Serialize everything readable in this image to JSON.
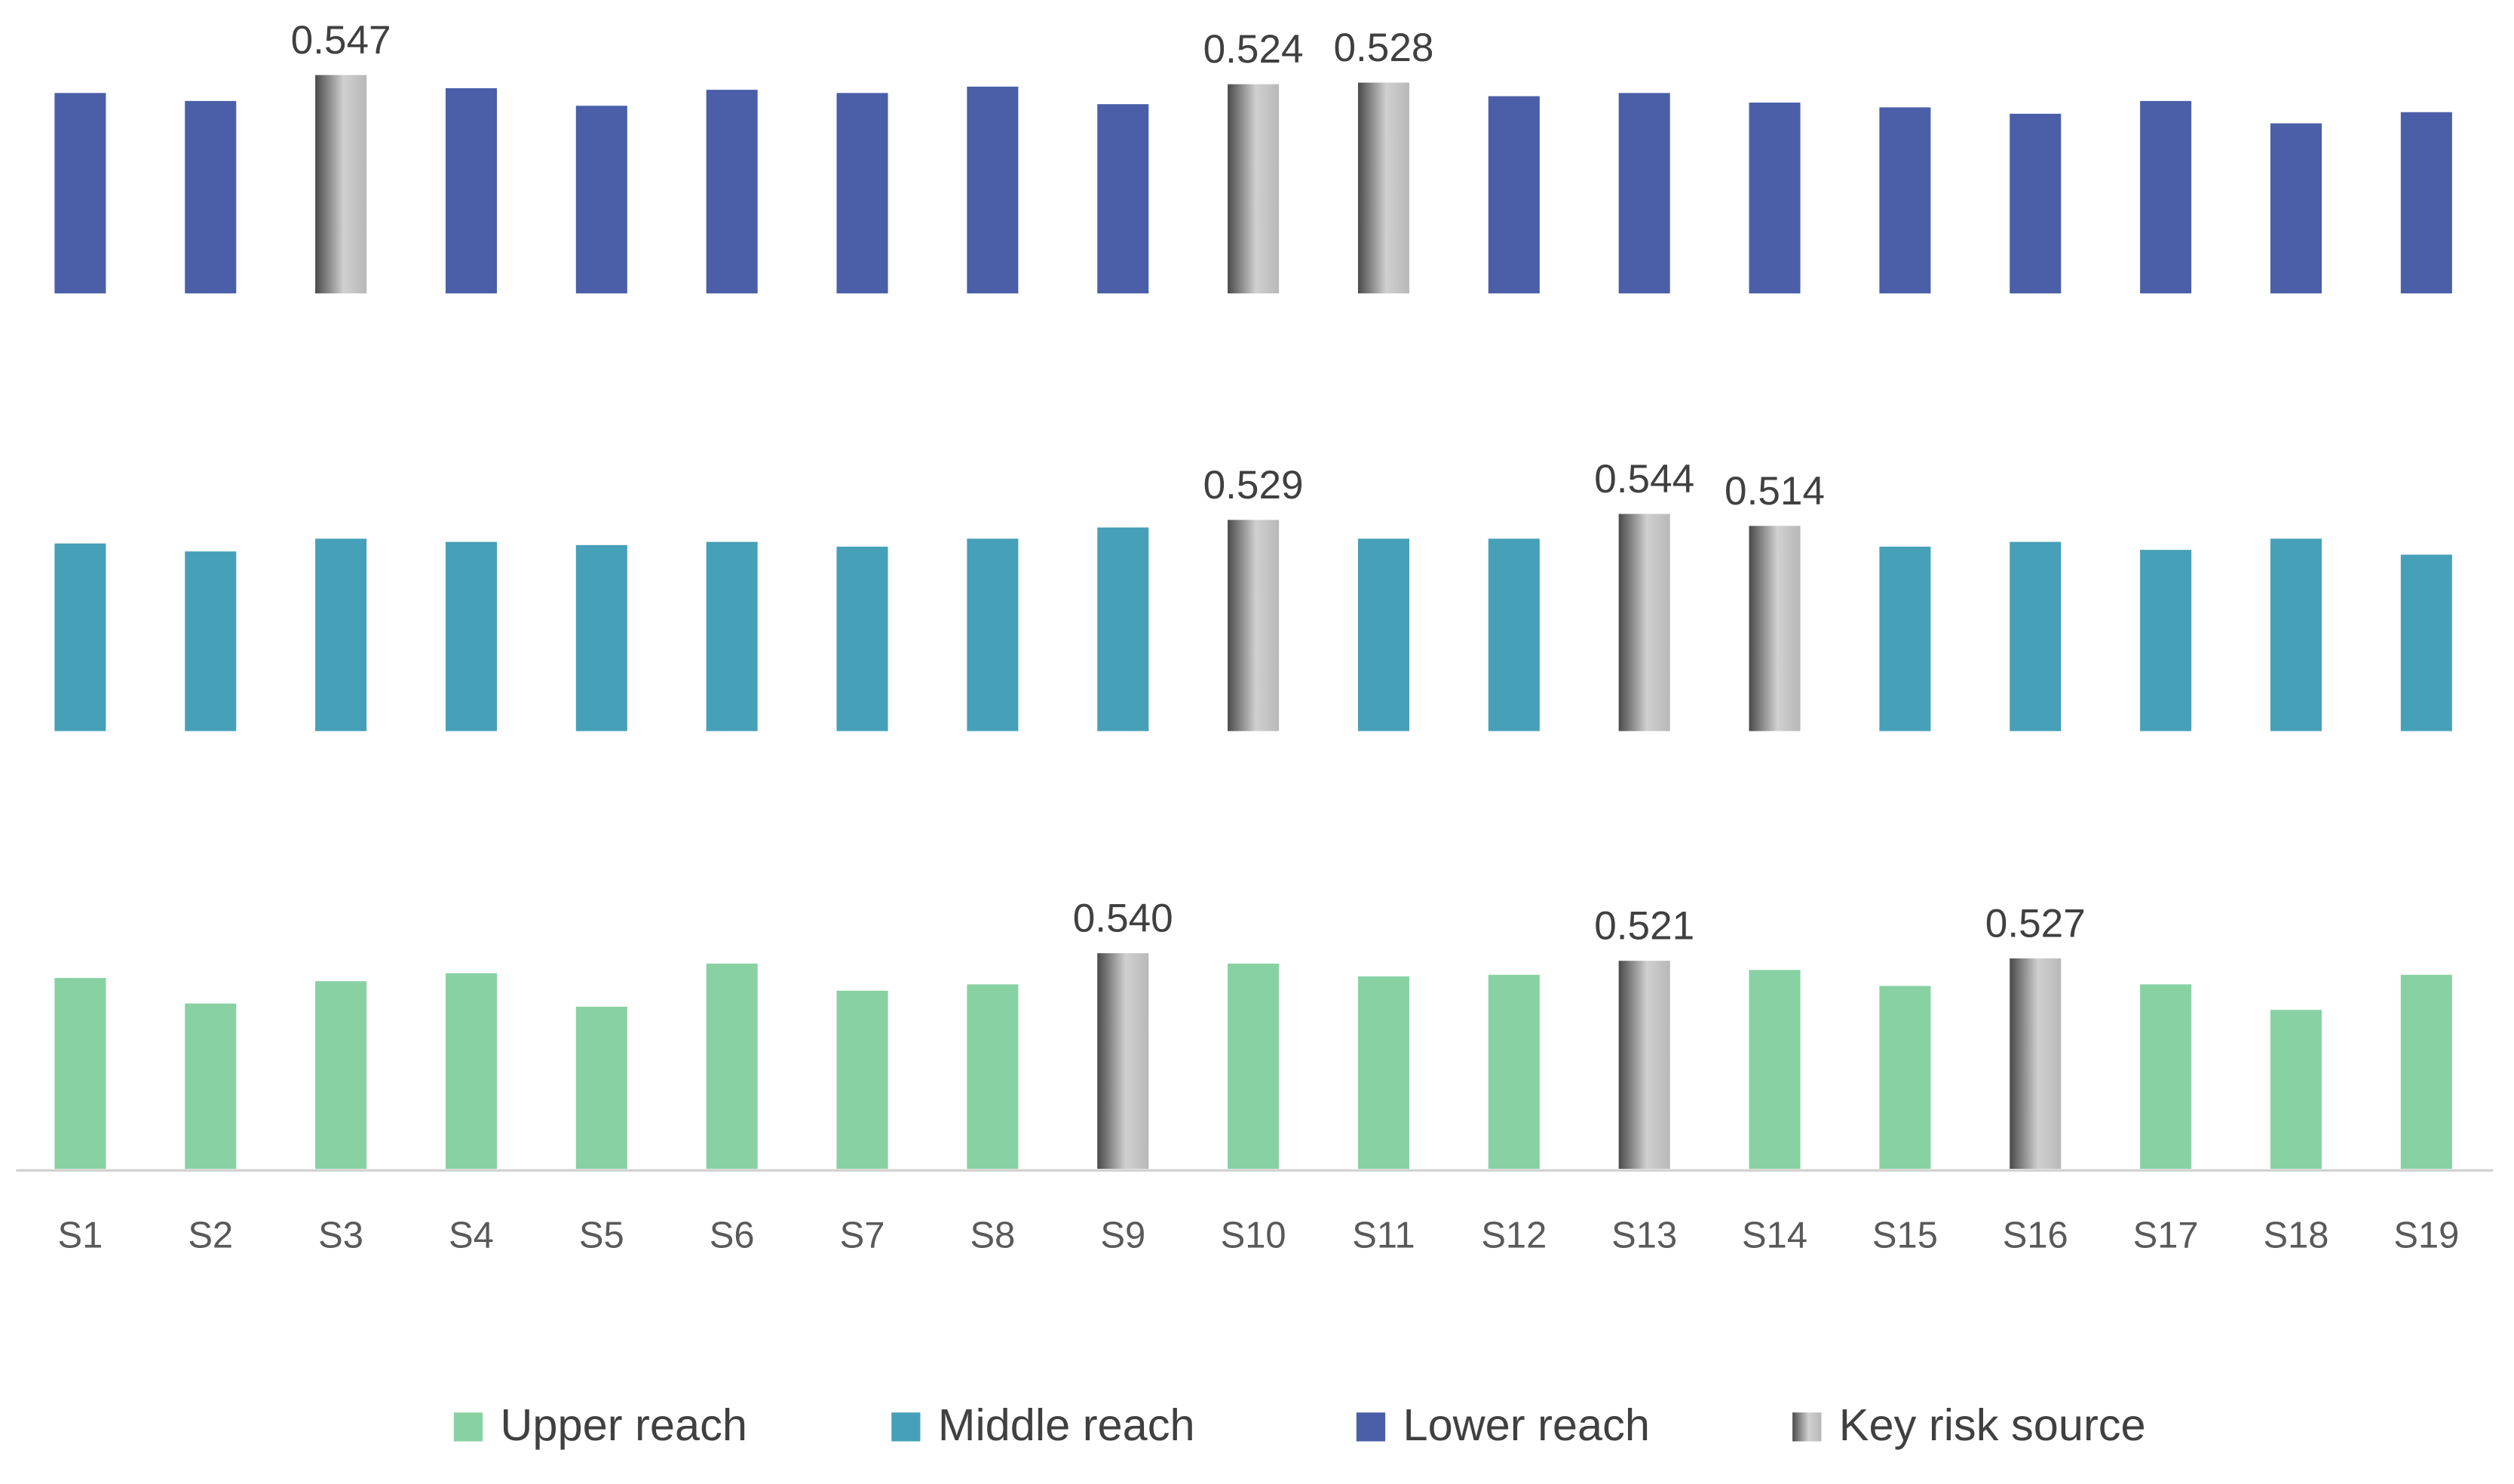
{
  "chart_data": {
    "type": "bar",
    "categories": [
      "S1",
      "S2",
      "S3",
      "S4",
      "S5",
      "S6",
      "S7",
      "S8",
      "S9",
      "S10",
      "S11",
      "S12",
      "S13",
      "S14",
      "S15",
      "S16",
      "S17",
      "S18",
      "S19"
    ],
    "series": [
      {
        "name": "Upper reach",
        "color": "#88d1a3",
        "values": [
          0.478,
          0.414,
          0.47,
          0.49,
          0.406,
          0.514,
          0.446,
          0.462,
          0.54,
          0.514,
          0.482,
          0.486,
          0.521,
          0.498,
          0.458,
          0.527,
          0.462,
          0.398,
          0.486
        ],
        "value_labels": [
          null,
          null,
          null,
          null,
          null,
          null,
          null,
          null,
          "0.540",
          null,
          null,
          null,
          "0.521",
          null,
          null,
          "0.527",
          null,
          null,
          null
        ]
      },
      {
        "name": "Middle reach",
        "color": "#46a0b8",
        "values": [
          0.47,
          0.45,
          0.482,
          0.474,
          0.466,
          0.474,
          0.462,
          0.482,
          0.51,
          0.529,
          0.482,
          0.482,
          0.544,
          0.514,
          0.462,
          0.474,
          0.454,
          0.482,
          0.442
        ],
        "value_labels": [
          null,
          null,
          null,
          null,
          null,
          null,
          null,
          null,
          null,
          "0.529",
          null,
          null,
          "0.544",
          "0.514",
          null,
          null,
          null,
          null,
          null
        ]
      },
      {
        "name": "Lower reach",
        "color": "#4a5fa8",
        "values": [
          0.502,
          0.482,
          0.547,
          0.514,
          0.47,
          0.51,
          0.502,
          0.518,
          0.474,
          0.524,
          0.528,
          0.494,
          0.502,
          0.478,
          0.466,
          0.45,
          0.482,
          0.426,
          0.454
        ],
        "value_labels": [
          null,
          null,
          "0.547",
          null,
          null,
          null,
          null,
          null,
          null,
          "0.524",
          "0.528",
          null,
          null,
          null,
          null,
          null,
          null,
          null,
          null
        ]
      }
    ],
    "highlight_name": "Key risk source",
    "highlight_color": "#9a9a9a"
  }
}
